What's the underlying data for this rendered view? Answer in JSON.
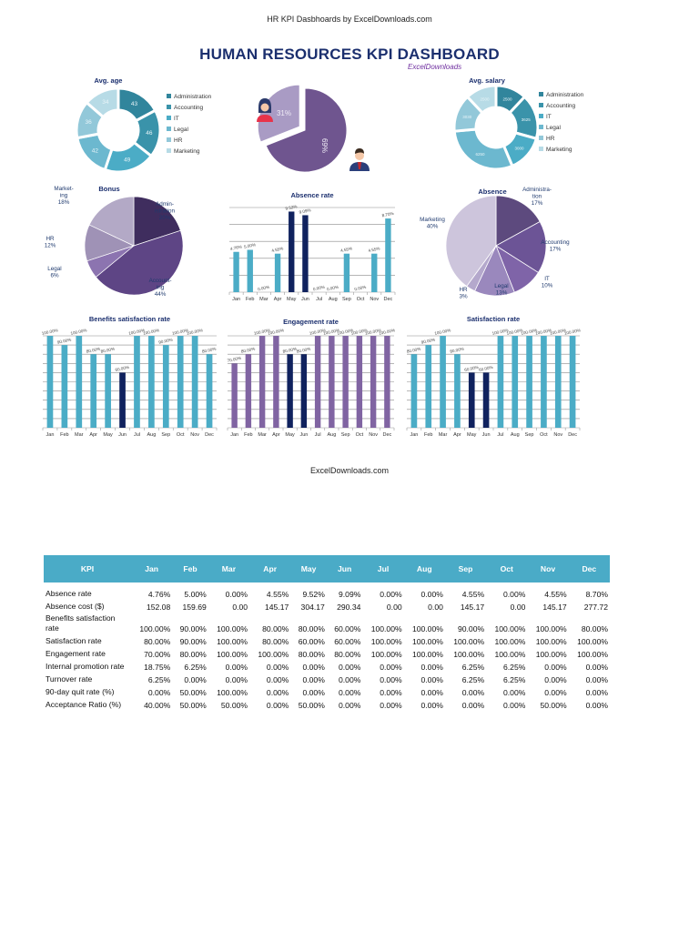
{
  "header": {
    "caption": "HR KPI Dasbhoards by ExcelDownloads.com",
    "title": "HUMAN RESOURCES KPI DASHBOARD",
    "brand": "ExcelDownloads"
  },
  "footer": "ExcelDownloads.com",
  "colors": {
    "title": "#1b2f6e",
    "brand": "#7030a0",
    "table_header": "#4aabc7",
    "teal_bar": "#4bacc6",
    "purple_bar": "#8064a2",
    "highlight_bar": "#10225e"
  },
  "icons": {
    "female": "female-avatar-icon",
    "male": "male-avatar-icon"
  },
  "chart_data": [
    {
      "type": "pie",
      "variant": "donut",
      "title": "Avg. age",
      "legend": "right",
      "categories": [
        "Administration",
        "Accounting",
        "IT",
        "Legal",
        "HR",
        "Marketing"
      ],
      "values": [
        43,
        46,
        49,
        42,
        36,
        34
      ],
      "colors": [
        "#31859c",
        "#3a93aa",
        "#4bacc6",
        "#6cb8cf",
        "#92c8d9",
        "#b7dbe6"
      ]
    },
    {
      "type": "pie",
      "title": "",
      "values": [
        69,
        31
      ],
      "labels": [
        "69%",
        "31%"
      ],
      "colors": [
        "#6f558f",
        "#a99bc4"
      ]
    },
    {
      "type": "pie",
      "variant": "donut",
      "title": "Avg. salary",
      "legend": "right",
      "categories": [
        "Administration",
        "Accounting",
        "IT",
        "Legal",
        "HR",
        "Marketing"
      ],
      "values": [
        2500,
        3625,
        3000,
        6250,
        3030,
        2500
      ],
      "colors": [
        "#31859c",
        "#3a93aa",
        "#4bacc6",
        "#6cb8cf",
        "#92c8d9",
        "#b7dbe6"
      ]
    },
    {
      "type": "pie",
      "title": "Bonus",
      "categories": [
        "Administration",
        "Accounting",
        "Legal",
        "HR",
        "Marketing"
      ],
      "label_lines": [
        [
          "Admin-",
          "istration",
          "20%"
        ],
        [
          "Account-",
          "ing",
          "44%"
        ],
        [
          "Legal",
          "6%"
        ],
        [
          "HR",
          "12%"
        ],
        [
          "Market-",
          "ing",
          "18%"
        ]
      ],
      "values": [
        20,
        44,
        6,
        12,
        18
      ],
      "colors": [
        "#3f2d5e",
        "#5e4585",
        "#8c74b0",
        "#9f92b6",
        "#b3a9c6"
      ]
    },
    {
      "type": "bar",
      "title": "Absence rate",
      "categories": [
        "Jan",
        "Feb",
        "Mar",
        "Apr",
        "May",
        "Jun",
        "Jul",
        "Aug",
        "Sep",
        "Oct",
        "Nov",
        "Dec"
      ],
      "values": [
        4.76,
        5.0,
        0.0,
        4.55,
        9.52,
        9.09,
        0.0,
        0.0,
        4.55,
        0.0,
        4.55,
        8.7
      ],
      "unit": "%",
      "ylim": [
        0,
        10
      ],
      "grid": true,
      "highlight": [
        "May",
        "Jun"
      ]
    },
    {
      "type": "pie",
      "title": "Absence",
      "categories": [
        "Administration",
        "Accounting",
        "IT",
        "Legal",
        "HR",
        "Marketing"
      ],
      "label_lines": [
        [
          "Administra-",
          "tion",
          "17%"
        ],
        [
          "Accounting",
          "17%"
        ],
        [
          "IT",
          "10%"
        ],
        [
          "Legal",
          "13%"
        ],
        [
          "HR",
          "3%"
        ],
        [
          "Marketing",
          "40%"
        ]
      ],
      "values": [
        17,
        17,
        10,
        13,
        3,
        40
      ],
      "colors": [
        "#5d4a7e",
        "#6c5496",
        "#7f64a8",
        "#9a88bd",
        "#b4a8cc",
        "#cdc5dc"
      ]
    },
    {
      "type": "bar",
      "title": "Benefits satisfaction rate",
      "categories": [
        "Jan",
        "Feb",
        "Mar",
        "Apr",
        "May",
        "Jun",
        "Jul",
        "Aug",
        "Sep",
        "Oct",
        "Nov",
        "Dec"
      ],
      "values": [
        100,
        90,
        100,
        80,
        80,
        60,
        100,
        100,
        90,
        100,
        100,
        80
      ],
      "unit": "%",
      "ylim": [
        0,
        100
      ],
      "grid": true,
      "highlight": [
        "Jun"
      ]
    },
    {
      "type": "bar",
      "title": "Engagement rate",
      "categories": [
        "Jan",
        "Feb",
        "Mar",
        "Apr",
        "May",
        "Jun",
        "Jul",
        "Aug",
        "Sep",
        "Oct",
        "Nov",
        "Dec"
      ],
      "values": [
        70,
        80,
        100,
        100,
        80,
        80,
        100,
        100,
        100,
        100,
        100,
        100
      ],
      "unit": "%",
      "ylim": [
        0,
        100
      ],
      "grid": true,
      "highlight": [
        "May",
        "Jun"
      ]
    },
    {
      "type": "bar",
      "title": "Satisfaction rate",
      "categories": [
        "Jan",
        "Feb",
        "Mar",
        "Apr",
        "May",
        "Jun",
        "Jul",
        "Aug",
        "Sep",
        "Oct",
        "Nov",
        "Dec"
      ],
      "values": [
        80,
        90,
        100,
        80,
        60,
        60,
        100,
        100,
        100,
        100,
        100,
        100
      ],
      "unit": "%",
      "ylim": [
        0,
        100
      ],
      "grid": true,
      "highlight": [
        "May",
        "Jun"
      ]
    }
  ],
  "table": {
    "headers": [
      "KPI",
      "Jan",
      "Feb",
      "Mar",
      "Apr",
      "May",
      "Jun",
      "Jul",
      "Aug",
      "Sep",
      "Oct",
      "Nov",
      "Dec"
    ],
    "rows": [
      {
        "label": "Absence rate",
        "values": [
          "4.76%",
          "5.00%",
          "0.00%",
          "4.55%",
          "9.52%",
          "9.09%",
          "0.00%",
          "0.00%",
          "4.55%",
          "0.00%",
          "4.55%",
          "8.70%"
        ]
      },
      {
        "label": "Absence cost ($)",
        "values": [
          "152.08",
          "159.69",
          "0.00",
          "145.17",
          "304.17",
          "290.34",
          "0.00",
          "0.00",
          "145.17",
          "0.00",
          "145.17",
          "277.72"
        ]
      },
      {
        "label": "Benefits satisfaction rate",
        "values": [
          "100.00%",
          "90.00%",
          "100.00%",
          "80.00%",
          "80.00%",
          "60.00%",
          "100.00%",
          "100.00%",
          "90.00%",
          "100.00%",
          "100.00%",
          "80.00%"
        ]
      },
      {
        "label": "Satisfaction rate",
        "values": [
          "80.00%",
          "90.00%",
          "100.00%",
          "80.00%",
          "60.00%",
          "60.00%",
          "100.00%",
          "100.00%",
          "100.00%",
          "100.00%",
          "100.00%",
          "100.00%"
        ]
      },
      {
        "label": "Engagement rate",
        "values": [
          "70.00%",
          "80.00%",
          "100.00%",
          "100.00%",
          "80.00%",
          "80.00%",
          "100.00%",
          "100.00%",
          "100.00%",
          "100.00%",
          "100.00%",
          "100.00%"
        ]
      },
      {
        "label": "Internal promotion rate",
        "values": [
          "18.75%",
          "6.25%",
          "0.00%",
          "0.00%",
          "0.00%",
          "0.00%",
          "0.00%",
          "0.00%",
          "6.25%",
          "6.25%",
          "0.00%",
          "0.00%"
        ]
      },
      {
        "label": "Turnover rate",
        "values": [
          "6.25%",
          "0.00%",
          "0.00%",
          "0.00%",
          "0.00%",
          "0.00%",
          "0.00%",
          "0.00%",
          "6.25%",
          "6.25%",
          "0.00%",
          "0.00%"
        ]
      },
      {
        "label": "90-day quit rate (%)",
        "values": [
          "0.00%",
          "50.00%",
          "100.00%",
          "0.00%",
          "0.00%",
          "0.00%",
          "0.00%",
          "0.00%",
          "0.00%",
          "0.00%",
          "0.00%",
          "0.00%"
        ]
      },
      {
        "label": "Acceptance Ratio (%)",
        "values": [
          "40.00%",
          "50.00%",
          "50.00%",
          "0.00%",
          "50.00%",
          "0.00%",
          "0.00%",
          "0.00%",
          "0.00%",
          "0.00%",
          "50.00%",
          "0.00%"
        ]
      }
    ]
  }
}
